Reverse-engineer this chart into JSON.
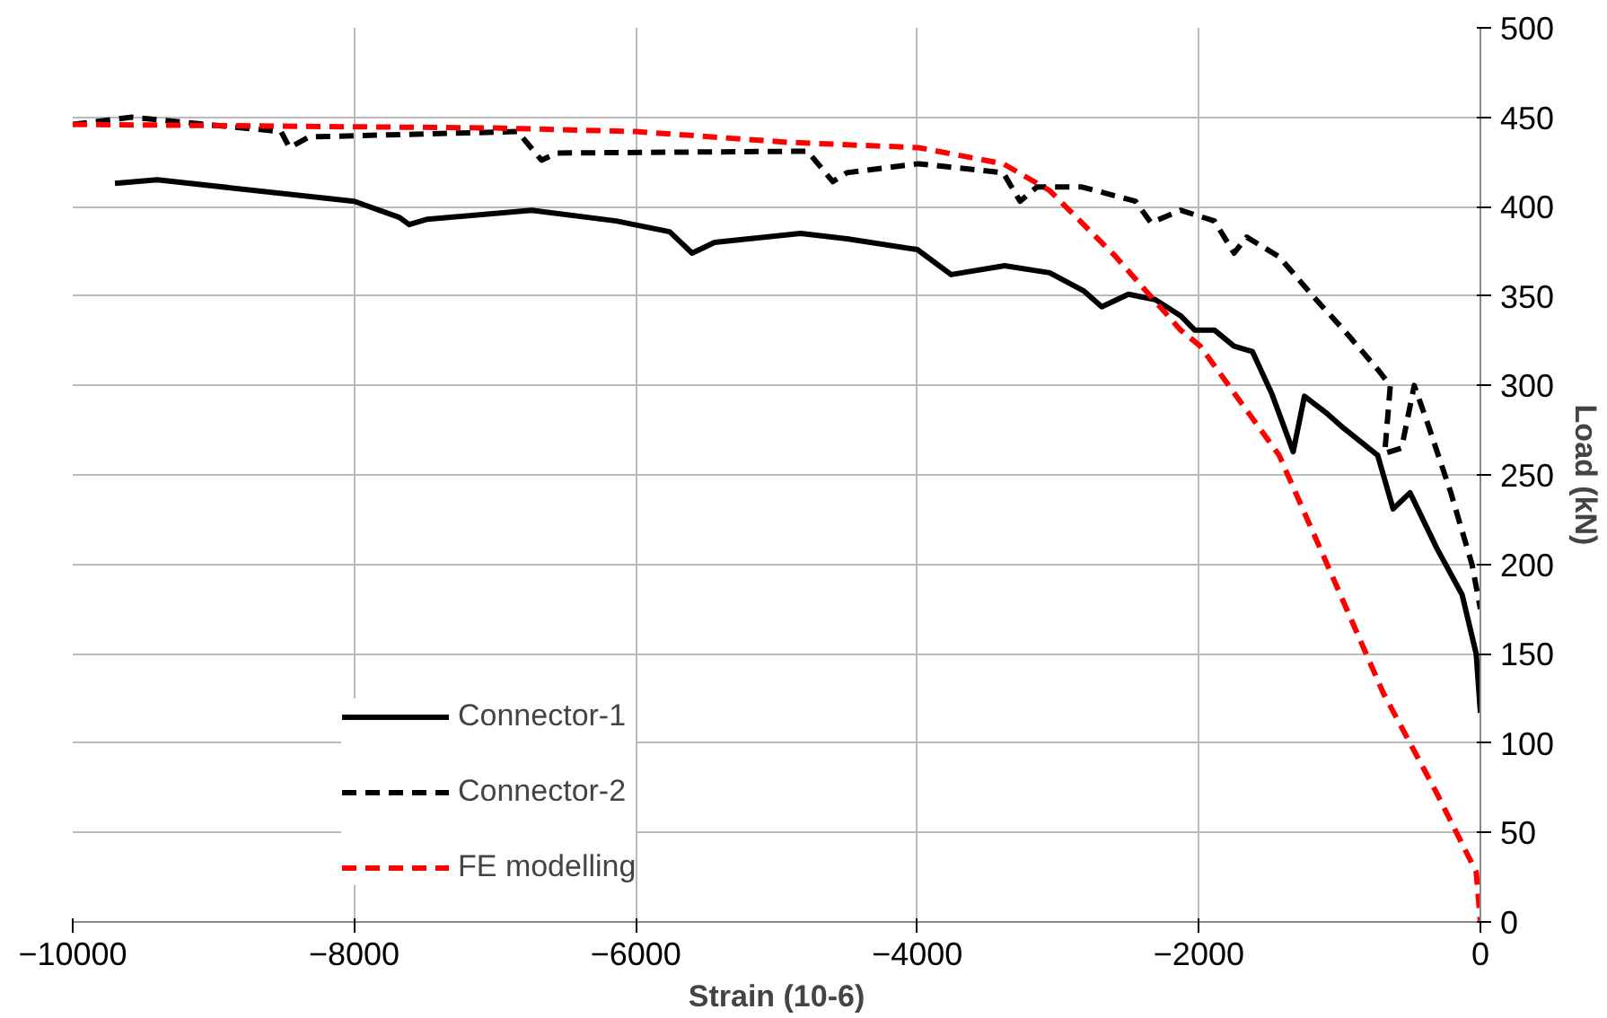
{
  "chart_data": {
    "type": "line",
    "xlabel": "Strain (10-6)",
    "ylabel": "Load (kN)",
    "xlim": [
      -10000,
      0
    ],
    "xticks": [
      -10000,
      -8000,
      -6000,
      -4000,
      -2000,
      0
    ],
    "ylim": [
      0,
      500
    ],
    "yticks": [
      0,
      50,
      100,
      150,
      200,
      250,
      300,
      350,
      400,
      450,
      500
    ],
    "grid": true,
    "legend": "bottom left",
    "marker": "none",
    "series": [
      {
        "name": "Connector-1",
        "color": "#000000",
        "line_style": "solid",
        "x": [
          -9700,
          -9400,
          -8000,
          -7680,
          -7610,
          -7480,
          -6740,
          -6140,
          -5760,
          -5600,
          -5440,
          -4830,
          -4500,
          -4000,
          -3760,
          -3380,
          -3060,
          -2820,
          -2690,
          -2500,
          -2310,
          -2130,
          -2030,
          -1890,
          -1750,
          -1620,
          -1480,
          -1330,
          -1250,
          -1100,
          -970,
          -730,
          -620,
          -500,
          -310,
          -130,
          -30,
          0
        ],
        "values": [
          413,
          415,
          403,
          394,
          390,
          393,
          398,
          392,
          386,
          374,
          380,
          385,
          382,
          376,
          362,
          367,
          363,
          353,
          344,
          351,
          348,
          339,
          331,
          331,
          322,
          319,
          295,
          263,
          294,
          285,
          276,
          261,
          231,
          240,
          209,
          183,
          150,
          117
        ]
      },
      {
        "name": "Connector-2",
        "color": "#000000",
        "line_style": "dashed",
        "x": [
          -10000,
          -9580,
          -8520,
          -8460,
          -8320,
          -6840,
          -6670,
          -6560,
          -4780,
          -4600,
          -4500,
          -3990,
          -3390,
          -3270,
          -3150,
          -2830,
          -2450,
          -2340,
          -2130,
          -1890,
          -1750,
          -1660,
          -1430,
          -1190,
          -970,
          -730,
          -640,
          -680,
          -560,
          -470,
          -380,
          -210,
          -60,
          0
        ],
        "values": [
          446,
          450,
          442,
          433,
          439,
          442,
          426,
          430,
          431,
          414,
          419,
          424,
          419,
          403,
          411,
          411,
          403,
          391,
          398,
          392,
          374,
          383,
          372,
          350,
          331,
          309,
          300,
          262,
          265,
          300,
          280,
          240,
          200,
          175
        ]
      },
      {
        "name": "FE modelling",
        "color": "#ff0000",
        "line_style": "dashed",
        "x": [
          -10000,
          -7000,
          -6000,
          -4920,
          -3990,
          -3390,
          -3060,
          -2590,
          -2130,
          -1990,
          -1430,
          -1100,
          -690,
          -310,
          -30,
          0
        ],
        "values": [
          446,
          444,
          442,
          436,
          433,
          424,
          409,
          372,
          331,
          322,
          261,
          202,
          128,
          72,
          28,
          0
        ]
      }
    ]
  }
}
